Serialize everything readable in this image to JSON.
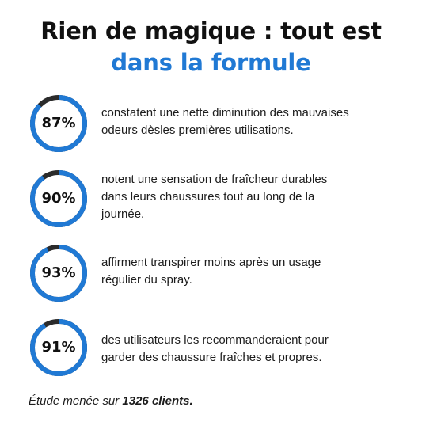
{
  "title": {
    "line1": "Rien de magique : tout est",
    "line2": "dans la formule"
  },
  "colors": {
    "accent": "#2079d4",
    "track": "#2b2b2b",
    "text": "#1d1d1d"
  },
  "stats": [
    {
      "value": 87,
      "label": "87%",
      "lines": [
        "constatent une nette diminution des mauvaises",
        "odeurs dèsles premières utilisations."
      ]
    },
    {
      "value": 90,
      "label": "90%",
      "lines": [
        "notent une sensation de fraîcheur durables",
        "dans leurs chaussures tout au long de la",
        "journée."
      ]
    },
    {
      "value": 93,
      "label": "93%",
      "lines": [
        "affirment transpirer moins après un usage",
        "régulier du spray."
      ]
    },
    {
      "value": 91,
      "label": "91%",
      "lines": [
        "des utilisateurs les recommanderaient pour",
        "garder des chaussure fraîches et propres."
      ]
    }
  ],
  "footer": {
    "prefix": "Étude menée sur ",
    "emphasis": "1326 clients."
  }
}
